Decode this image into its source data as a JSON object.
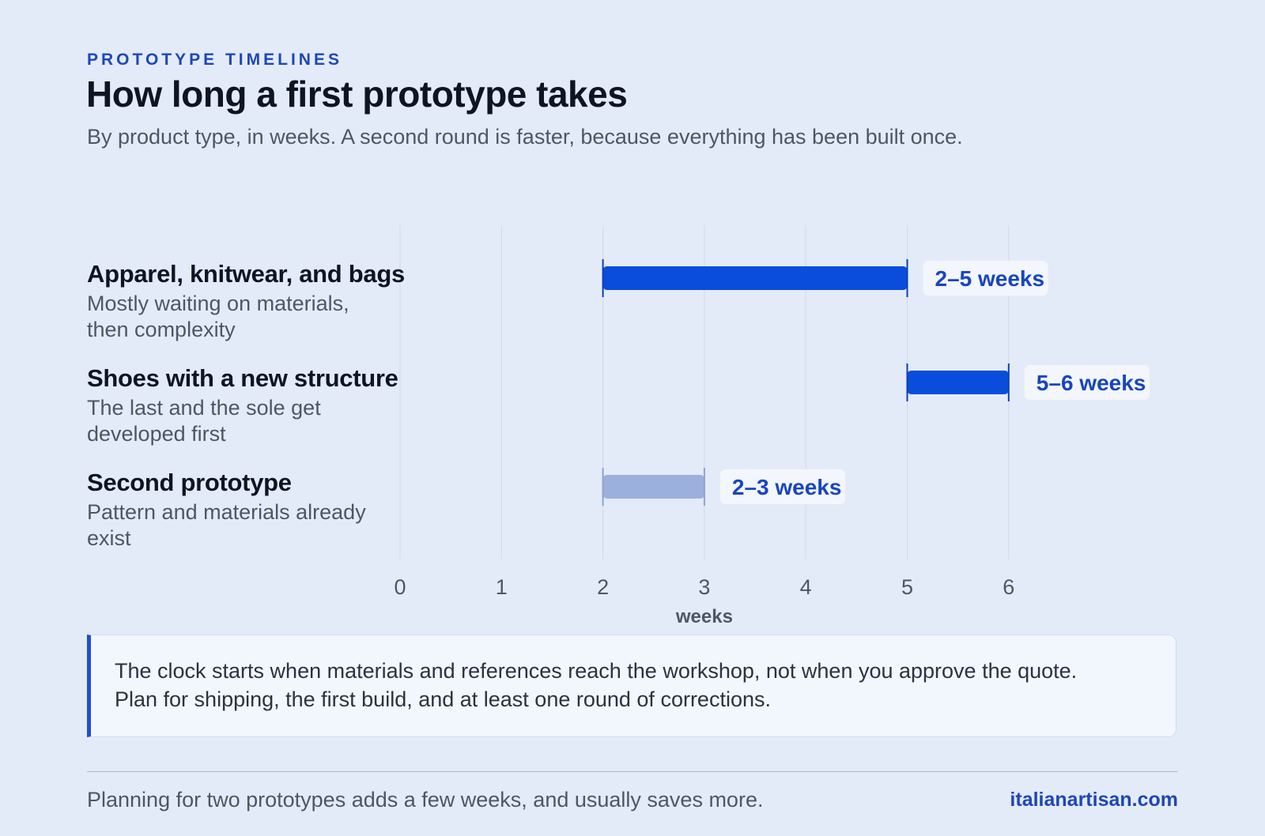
{
  "header": {
    "eyebrow": "PROTOTYPE TIMELINES",
    "title": "How long a first prototype takes",
    "subtitle": "By product type, in weeks. A second round is faster, because everything has been built once."
  },
  "chart_data": {
    "type": "bar",
    "orientation": "horizontal-range",
    "xlabel": "weeks",
    "xlim": [
      0,
      7
    ],
    "x_ticks": [
      "0",
      "1",
      "2",
      "3",
      "4",
      "5",
      "6"
    ],
    "grid": true,
    "rows": [
      {
        "title": "Apparel, knitwear, and bags",
        "subtitle": "Mostly waiting on materials, then complexity",
        "start": 2,
        "end": 5,
        "label": "2–5 weeks",
        "color": "#0a4ddc"
      },
      {
        "title": "Shoes with a new structure",
        "subtitle": "The last and the sole get developed first",
        "start": 5,
        "end": 6,
        "label": "5–6 weeks",
        "color": "#0a4ddc"
      },
      {
        "title": "Second prototype",
        "subtitle": "Pattern and materials already exist",
        "start": 2,
        "end": 3,
        "label": "2–3 weeks",
        "color": "#9bb0dd"
      }
    ]
  },
  "callout": {
    "line1": "The clock starts when materials and references reach the workshop, not when you approve the quote.",
    "line2": "Plan for shipping, the first build, and at least one round of corrections."
  },
  "footer": {
    "note": "Planning for two prototypes adds a few weeks, and usually saves more.",
    "site": "italianartisan.com"
  },
  "colors": {
    "accent": "#1d47b8",
    "bar": "#0a4ddc",
    "bar_muted": "#9bb0dd",
    "background": "#e4ebf8"
  }
}
